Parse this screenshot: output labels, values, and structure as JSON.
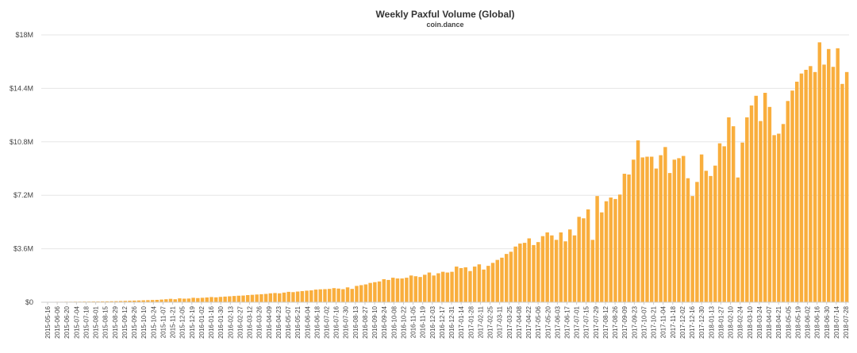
{
  "chart": {
    "title": "Weekly Paxful Volume (Global)",
    "subtitle": "coin.dance"
  },
  "chart_data": {
    "type": "bar",
    "title": "Weekly Paxful Volume (Global)",
    "subtitle": "coin.dance",
    "xlabel": "",
    "ylabel": "",
    "ylim": [
      0,
      18000000
    ],
    "yticks": [
      {
        "value": 0,
        "label": "$0"
      },
      {
        "value": 3600000,
        "label": "$3.6M"
      },
      {
        "value": 7200000,
        "label": "$7.2M"
      },
      {
        "value": 10800000,
        "label": "$10.8M"
      },
      {
        "value": 14400000,
        "label": "$14.4M"
      },
      {
        "value": 18000000,
        "label": "$18M"
      }
    ],
    "xtick_labels": [
      "2015-05-16",
      "2015-06-06",
      "2015-06-20",
      "2015-07-04",
      "2015-07-18",
      "2015-08-01",
      "2015-08-15",
      "2015-08-29",
      "2015-09-12",
      "2015-09-26",
      "2015-10-10",
      "2015-10-24",
      "2015-11-07",
      "2015-11-21",
      "2015-12-05",
      "2015-12-19",
      "2016-01-02",
      "2016-01-16",
      "2016-01-30",
      "2016-02-13",
      "2016-02-27",
      "2016-03-12",
      "2016-03-26",
      "2016-04-09",
      "2016-04-23",
      "2016-05-07",
      "2016-05-21",
      "2016-06-04",
      "2016-06-18",
      "2016-07-02",
      "2016-07-16",
      "2016-07-30",
      "2016-08-13",
      "2016-08-27",
      "2016-09-10",
      "2016-09-24",
      "2016-10-08",
      "2016-10-22",
      "2016-11-05",
      "2016-11-19",
      "2016-12-03",
      "2016-12-17",
      "2016-12-31",
      "2017-01-14",
      "2017-01-28",
      "2017-02-11",
      "2017-02-25",
      "2017-03-11",
      "2017-03-25",
      "2017-04-08",
      "2017-04-22",
      "2017-05-06",
      "2017-05-20",
      "2017-06-03",
      "2017-06-17",
      "2017-07-01",
      "2017-07-15",
      "2017-07-29",
      "2017-08-12",
      "2017-08-26",
      "2017-09-09",
      "2017-09-23",
      "2017-10-07",
      "2017-10-21",
      "2017-11-04",
      "2017-11-18",
      "2017-12-02",
      "2017-12-16",
      "2017-12-30",
      "2018-01-13",
      "2018-01-27",
      "2018-02-10",
      "2018-02-24",
      "2018-03-10",
      "2018-03-24",
      "2018-04-07",
      "2018-04-21",
      "2018-05-05",
      "2018-05-19",
      "2018-06-02",
      "2018-06-16",
      "2018-06-30",
      "2018-07-14",
      "2018-07-28"
    ],
    "bar_color": "#f9ae3d",
    "grid": true,
    "values": [
      20000,
      25000,
      25000,
      30000,
      30000,
      35000,
      35000,
      40000,
      40000,
      45000,
      45000,
      50000,
      50000,
      55000,
      60000,
      65000,
      70000,
      80000,
      90000,
      100000,
      110000,
      120000,
      130000,
      140000,
      150000,
      160000,
      180000,
      200000,
      230000,
      200000,
      260000,
      240000,
      250000,
      300000,
      280000,
      300000,
      320000,
      350000,
      330000,
      360000,
      380000,
      400000,
      420000,
      440000,
      450000,
      480000,
      500000,
      520000,
      540000,
      560000,
      600000,
      620000,
      600000,
      650000,
      700000,
      680000,
      720000,
      750000,
      780000,
      800000,
      850000,
      870000,
      880000,
      900000,
      950000,
      920000,
      880000,
      1000000,
      900000,
      1100000,
      1150000,
      1200000,
      1300000,
      1350000,
      1400000,
      1550000,
      1500000,
      1650000,
      1600000,
      1600000,
      1650000,
      1800000,
      1750000,
      1700000,
      1850000,
      2000000,
      1800000,
      1950000,
      2050000,
      2000000,
      2050000,
      2400000,
      2300000,
      2350000,
      2100000,
      2400000,
      2550000,
      2200000,
      2450000,
      2650000,
      2850000,
      3000000,
      3250000,
      3400000,
      3750000,
      3950000,
      4000000,
      4300000,
      3850000,
      4050000,
      4450000,
      4700000,
      4500000,
      4200000,
      4700000,
      4100000,
      4900000,
      4500000,
      5750000,
      5650000,
      6250000,
      4200000,
      7150000,
      6050000,
      6800000,
      7050000,
      6950000,
      7250000,
      8650000,
      8600000,
      9600000,
      10900000,
      9750000,
      9800000,
      9800000,
      9000000,
      9900000,
      10450000,
      8700000,
      9600000,
      9700000,
      9850000,
      8350000,
      7150000,
      8100000,
      9950000,
      8850000,
      8500000,
      9200000,
      10700000,
      10500000,
      12450000,
      11850000,
      8400000,
      10750000,
      12450000,
      13250000,
      13900000,
      12200000,
      14100000,
      13150000,
      11250000,
      11350000,
      12000000,
      13550000,
      14250000,
      14850000,
      15400000,
      15650000,
      15900000,
      15500000,
      17500000,
      16000000,
      17050000,
      15850000,
      17100000,
      14700000,
      15500000
    ]
  }
}
